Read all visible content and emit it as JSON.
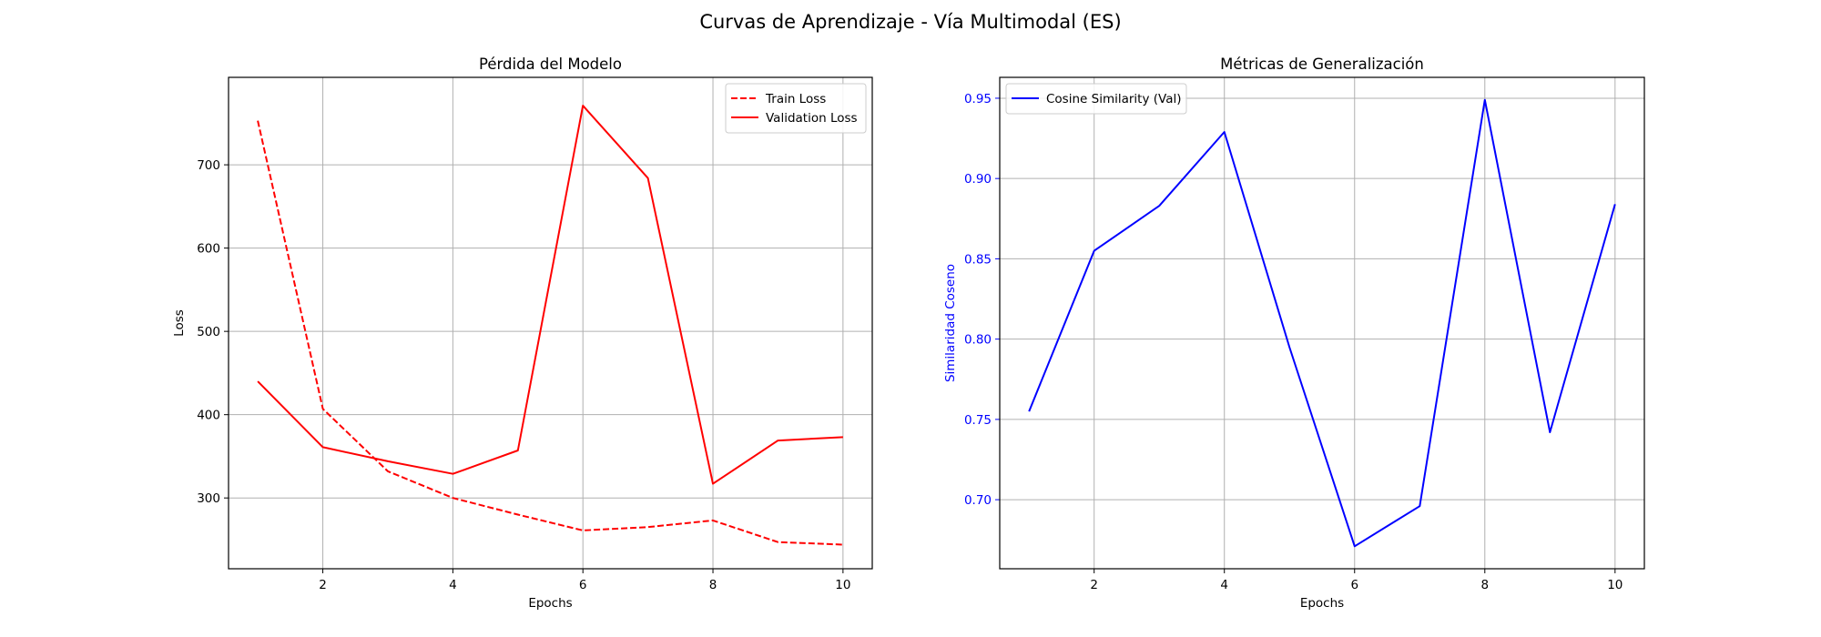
{
  "suptitle": "Curvas de Aprendizaje - Vía Multimodal (ES)",
  "chart_data": [
    {
      "type": "line",
      "title": "Pérdida del Modelo",
      "xlabel": "Epochs",
      "ylabel": "Loss",
      "xlim": [
        0.55,
        10.45
      ],
      "ylim": [
        215,
        805
      ],
      "xticks": [
        2,
        4,
        6,
        8,
        10
      ],
      "yticks": [
        300,
        400,
        500,
        600,
        700
      ],
      "grid": true,
      "legend_position": "upper right",
      "x": [
        1,
        2,
        3,
        4,
        5,
        6,
        7,
        8,
        9,
        10
      ],
      "series": [
        {
          "name": "Train Loss",
          "color": "#ff0000",
          "dash": "dashed",
          "values": [
            753,
            407,
            332,
            300,
            280,
            261,
            265,
            273,
            247,
            244
          ]
        },
        {
          "name": "Validation Loss",
          "color": "#ff0000",
          "dash": "solid",
          "values": [
            440,
            361,
            344,
            329,
            357,
            771,
            684,
            317,
            369,
            373
          ]
        }
      ]
    },
    {
      "type": "line",
      "title": "Métricas de Generalización",
      "xlabel": "Epochs",
      "ylabel": "Similaridad Coseno",
      "ylabel_color": "#0000ff",
      "ytick_color": "#0000ff",
      "xlim": [
        0.55,
        10.45
      ],
      "ylim": [
        0.657,
        0.963
      ],
      "xticks": [
        2,
        4,
        6,
        8,
        10
      ],
      "yticks": [
        0.7,
        0.75,
        0.8,
        0.85,
        0.9,
        0.95
      ],
      "ytick_labels": [
        "0.70",
        "0.75",
        "0.80",
        "0.85",
        "0.90",
        "0.95"
      ],
      "grid": true,
      "legend_position": "upper left",
      "x": [
        1,
        2,
        3,
        4,
        5,
        6,
        7,
        8,
        9,
        10
      ],
      "series": [
        {
          "name": "Cosine Similarity (Val)",
          "color": "#0000ff",
          "dash": "solid",
          "values": [
            0.755,
            0.855,
            0.883,
            0.929,
            0.795,
            0.671,
            0.696,
            0.949,
            0.742,
            0.884
          ]
        }
      ]
    }
  ]
}
